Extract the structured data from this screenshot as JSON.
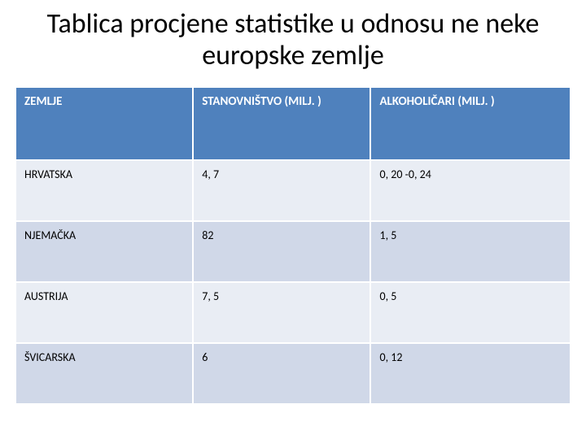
{
  "title": "Tablica procjene statistike u odnosu ne neke europske zemlje",
  "table": {
    "type": "table",
    "header_bg": "#4f81bd",
    "header_fg": "#ffffff",
    "row_band_light": "#e9edf4",
    "row_band_dark": "#d0d8e8",
    "title_fontsize": 34,
    "header_fontsize": 15,
    "cell_fontsize": 14,
    "columns": [
      "ZEMLJE",
      "STANOVNIŠTVO (MILJ. )",
      "ALKOHOLIČARI (MILJ. )"
    ],
    "rows": [
      [
        "HRVATSKA",
        "4, 7",
        "0, 20 -0, 24"
      ],
      [
        "NJEMAČKA",
        "82",
        "1, 5"
      ],
      [
        "AUSTRIJA",
        "7, 5",
        "0, 5"
      ],
      [
        "ŠVICARSKA",
        "6",
        "0, 12"
      ]
    ]
  }
}
